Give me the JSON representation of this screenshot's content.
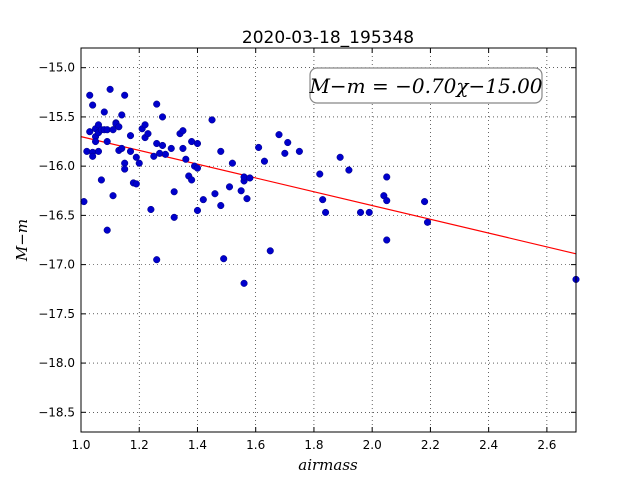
{
  "chart_data": {
    "type": "scatter",
    "title": "2020-03-18_195348",
    "xlabel": "airmass",
    "ylabel": "M−m",
    "xlim": [
      1.0,
      2.7
    ],
    "ylim": [
      -18.7,
      -14.8
    ],
    "x_ticks": [
      "1.0",
      "1.2",
      "1.4",
      "1.6",
      "1.8",
      "2.0",
      "2.2",
      "2.4",
      "2.6"
    ],
    "y_ticks": [
      "−15.0",
      "−15.5",
      "−16.0",
      "−16.5",
      "−17.0",
      "−17.5",
      "−18.0",
      "−18.5"
    ],
    "grid": true,
    "annotation": "M−m = −0.70χ−15.00",
    "fit": {
      "slope": -0.7,
      "intercept": -15.0,
      "color": "#ff0000"
    },
    "point_color": "#0000cc",
    "points": [
      [
        1.01,
        -16.36
      ],
      [
        1.02,
        -15.85
      ],
      [
        1.03,
        -15.28
      ],
      [
        1.03,
        -15.65
      ],
      [
        1.04,
        -15.38
      ],
      [
        1.04,
        -15.86
      ],
      [
        1.04,
        -15.9
      ],
      [
        1.05,
        -15.7
      ],
      [
        1.05,
        -15.62
      ],
      [
        1.05,
        -15.75
      ],
      [
        1.06,
        -15.66
      ],
      [
        1.06,
        -15.58
      ],
      [
        1.06,
        -15.85
      ],
      [
        1.07,
        -16.14
      ],
      [
        1.07,
        -15.63
      ],
      [
        1.08,
        -15.45
      ],
      [
        1.08,
        -15.63
      ],
      [
        1.09,
        -15.75
      ],
      [
        1.09,
        -15.63
      ],
      [
        1.09,
        -16.65
      ],
      [
        1.1,
        -15.22
      ],
      [
        1.11,
        -15.63
      ],
      [
        1.11,
        -16.3
      ],
      [
        1.12,
        -15.56
      ],
      [
        1.12,
        -15.57
      ],
      [
        1.13,
        -15.6
      ],
      [
        1.13,
        -15.84
      ],
      [
        1.14,
        -15.48
      ],
      [
        1.14,
        -15.82
      ],
      [
        1.15,
        -15.28
      ],
      [
        1.15,
        -15.97
      ],
      [
        1.15,
        -16.03
      ],
      [
        1.17,
        -15.69
      ],
      [
        1.17,
        -15.85
      ],
      [
        1.18,
        -16.17
      ],
      [
        1.19,
        -16.18
      ],
      [
        1.19,
        -15.91
      ],
      [
        1.2,
        -15.97
      ],
      [
        1.21,
        -15.62
      ],
      [
        1.22,
        -15.58
      ],
      [
        1.22,
        -15.71
      ],
      [
        1.23,
        -15.67
      ],
      [
        1.24,
        -16.44
      ],
      [
        1.25,
        -15.9
      ],
      [
        1.26,
        -15.77
      ],
      [
        1.26,
        -15.37
      ],
      [
        1.26,
        -16.95
      ],
      [
        1.27,
        -15.87
      ],
      [
        1.28,
        -15.5
      ],
      [
        1.28,
        -15.79
      ],
      [
        1.29,
        -15.88
      ],
      [
        1.31,
        -15.82
      ],
      [
        1.32,
        -16.26
      ],
      [
        1.32,
        -16.52
      ],
      [
        1.34,
        -15.67
      ],
      [
        1.35,
        -15.64
      ],
      [
        1.35,
        -15.82
      ],
      [
        1.36,
        -15.93
      ],
      [
        1.37,
        -16.1
      ],
      [
        1.38,
        -16.14
      ],
      [
        1.38,
        -15.75
      ],
      [
        1.39,
        -16.0
      ],
      [
        1.4,
        -16.45
      ],
      [
        1.4,
        -16.02
      ],
      [
        1.4,
        -15.77
      ],
      [
        1.42,
        -16.34
      ],
      [
        1.45,
        -15.53
      ],
      [
        1.46,
        -16.28
      ],
      [
        1.48,
        -15.85
      ],
      [
        1.48,
        -16.4
      ],
      [
        1.49,
        -16.94
      ],
      [
        1.51,
        -16.21
      ],
      [
        1.52,
        -15.97
      ],
      [
        1.55,
        -16.25
      ],
      [
        1.56,
        -16.15
      ],
      [
        1.56,
        -17.19
      ],
      [
        1.56,
        -16.11
      ],
      [
        1.57,
        -16.33
      ],
      [
        1.58,
        -16.12
      ],
      [
        1.61,
        -15.81
      ],
      [
        1.63,
        -15.95
      ],
      [
        1.65,
        -16.86
      ],
      [
        1.68,
        -15.68
      ],
      [
        1.7,
        -15.87
      ],
      [
        1.71,
        -15.76
      ],
      [
        1.75,
        -15.85
      ],
      [
        1.82,
        -16.08
      ],
      [
        1.83,
        -16.34
      ],
      [
        1.84,
        -16.47
      ],
      [
        1.89,
        -15.91
      ],
      [
        1.92,
        -16.04
      ],
      [
        1.96,
        -16.47
      ],
      [
        1.99,
        -16.47
      ],
      [
        2.04,
        -16.3
      ],
      [
        2.05,
        -16.35
      ],
      [
        2.05,
        -16.11
      ],
      [
        2.05,
        -16.75
      ],
      [
        2.18,
        -16.36
      ],
      [
        2.19,
        -16.57
      ],
      [
        2.7,
        -17.15
      ]
    ]
  }
}
